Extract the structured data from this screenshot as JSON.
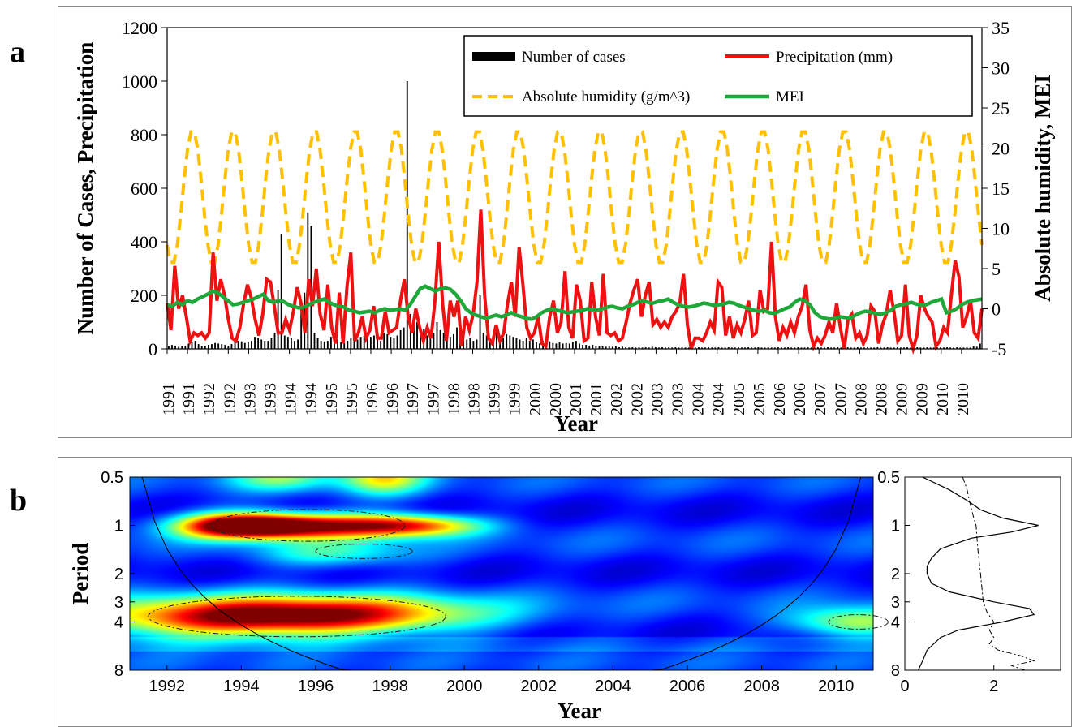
{
  "panel_a_letter": "a",
  "panel_b_letter": "b",
  "chart_data": [
    {
      "type": "line",
      "panel": "a",
      "xlabel": "Year",
      "ylabel": "Number of Cases, Precipitation",
      "y2label": "Absolute humidity, MEI",
      "ylim": [
        0,
        1200
      ],
      "y2lim": [
        -5,
        35
      ],
      "yticks": [
        "0",
        "200",
        "400",
        "600",
        "800",
        "1000",
        "1200"
      ],
      "y2ticks": [
        "-5",
        "0",
        "5",
        "10",
        "15",
        "20",
        "25",
        "30",
        "35"
      ],
      "xticks": [
        "1991",
        "1991",
        "1992",
        "1992",
        "1993",
        "1993",
        "1994",
        "1994",
        "1995",
        "1995",
        "1996",
        "1996",
        "1997",
        "1997",
        "1998",
        "1998",
        "1999",
        "1999",
        "2000",
        "2000",
        "2001",
        "2001",
        "2002",
        "2002",
        "2003",
        "2003",
        "2004",
        "2004",
        "2005",
        "2005",
        "2006",
        "2006",
        "2007",
        "2007",
        "2008",
        "2008",
        "2009",
        "2009",
        "2010",
        "2010"
      ],
      "legend": {
        "placement": "top-right",
        "entries": [
          "Number of cases",
          "Precipitation (mm)",
          "Absolute humidity (g/m^3)",
          "MEI"
        ]
      },
      "colors": {
        "cases": "#000000",
        "precip": "#ee1111",
        "humidity": "#ffc000",
        "mei": "#1fa83a"
      },
      "series": [
        {
          "name": "Number of cases",
          "axis": "left",
          "style": "bar",
          "values": [
            10,
            15,
            12,
            8,
            10,
            12,
            20,
            25,
            30,
            18,
            12,
            10,
            15,
            18,
            22,
            20,
            18,
            15,
            12,
            18,
            25,
            30,
            28,
            22,
            25,
            30,
            45,
            40,
            35,
            30,
            30,
            40,
            60,
            220,
            430,
            50,
            45,
            40,
            30,
            35,
            180,
            210,
            510,
            460,
            60,
            40,
            30,
            28,
            30,
            45,
            40,
            35,
            25,
            22,
            30,
            40,
            30,
            35,
            45,
            50,
            40,
            45,
            50,
            35,
            30,
            60,
            55,
            45,
            40,
            50,
            70,
            80,
            1000,
            130,
            120,
            100,
            80,
            75,
            50,
            40,
            60,
            100,
            70,
            60,
            50,
            45,
            55,
            80,
            60,
            45,
            35,
            40,
            30,
            35,
            200,
            60,
            50,
            40,
            50,
            60,
            45,
            40,
            55,
            50,
            45,
            40,
            35,
            30,
            40,
            30,
            35,
            25,
            20,
            30,
            25,
            28,
            22,
            20,
            25,
            20,
            22,
            20,
            25,
            30,
            20,
            15,
            15,
            12,
            15,
            10,
            12,
            10,
            8,
            10,
            8,
            10,
            6,
            8,
            6,
            5,
            6,
            5,
            6,
            5,
            6,
            5,
            8,
            6,
            5,
            6,
            5,
            6,
            5,
            6,
            5,
            6,
            5,
            5,
            6,
            5,
            6,
            5,
            5,
            6,
            5,
            5,
            6,
            5,
            5,
            6,
            5,
            5,
            6,
            5,
            5,
            6,
            5,
            5,
            6,
            5,
            5,
            6,
            5,
            5,
            6,
            5,
            5,
            6,
            5,
            5,
            6,
            5,
            5,
            6,
            5,
            5,
            6,
            5,
            5,
            6,
            5,
            5,
            6,
            5,
            5,
            6,
            5,
            5,
            6,
            5,
            5,
            6,
            5,
            5,
            6,
            5,
            5,
            6,
            5,
            5,
            6,
            5,
            5,
            6,
            5,
            5,
            6,
            5,
            5,
            6,
            5,
            5,
            6,
            5,
            5,
            6,
            5,
            5,
            6,
            5,
            5,
            6,
            5,
            10,
            8,
            20
          ]
        },
        {
          "name": "Precipitation (mm)",
          "axis": "left",
          "style": "solid",
          "values": [
            170,
            70,
            310,
            150,
            200,
            120,
            30,
            60,
            50,
            60,
            40,
            60,
            360,
            180,
            260,
            200,
            110,
            40,
            30,
            80,
            170,
            240,
            190,
            110,
            50,
            130,
            260,
            250,
            160,
            60,
            60,
            110,
            70,
            140,
            230,
            170,
            60,
            260,
            160,
            300,
            130,
            70,
            240,
            80,
            20,
            210,
            20,
            230,
            360,
            30,
            60,
            120,
            40,
            70,
            160,
            40,
            40,
            140,
            60,
            70,
            80,
            180,
            260,
            120,
            60,
            150,
            80,
            30,
            80,
            40,
            180,
            400,
            170,
            30,
            180,
            120,
            180,
            10,
            120,
            70,
            130,
            250,
            520,
            200,
            40,
            20,
            90,
            30,
            60,
            170,
            250,
            120,
            380,
            240,
            80,
            40,
            60,
            120,
            20,
            10,
            120,
            180,
            60,
            100,
            290,
            80,
            40,
            240,
            180,
            30,
            40,
            250,
            120,
            50,
            280,
            60,
            50,
            60,
            30,
            40,
            100,
            170,
            220,
            260,
            120,
            200,
            250,
            90,
            110,
            80,
            100,
            80,
            120,
            140,
            170,
            280,
            90,
            0,
            40,
            40,
            30,
            60,
            100,
            70,
            250,
            230,
            50,
            120,
            40,
            90,
            60,
            110,
            180,
            50,
            60,
            220,
            140,
            150,
            400,
            120,
            30,
            80,
            50,
            100,
            60,
            120,
            160,
            240,
            70,
            10,
            40,
            20,
            50,
            100,
            60,
            170,
            80,
            0,
            110,
            130,
            40,
            60,
            20,
            50,
            160,
            140,
            20,
            90,
            130,
            220,
            140,
            30,
            50,
            240,
            50,
            0,
            50,
            200,
            150,
            120,
            100,
            10,
            30,
            80,
            60,
            200,
            330,
            270,
            80,
            120,
            180,
            60,
            40,
            150
          ]
        },
        {
          "name": "Absolute humidity (g/m^3)",
          "axis": "right",
          "style": "dashed",
          "period_months": 12,
          "min": 5.5,
          "max": 22.3
        },
        {
          "name": "MEI",
          "axis": "right",
          "style": "solid",
          "values": [
            0.5,
            0.3,
            0.8,
            0.5,
            1,
            0.8,
            1.2,
            1.5,
            1.8,
            2.2,
            2.0,
            1.5,
            1.0,
            0.5,
            0.6,
            0.8,
            1.0,
            1.2,
            1.5,
            1.8,
            1.0,
            0.8,
            1.0,
            0.9,
            0.5,
            0.3,
            0.1,
            0.2,
            0.5,
            0.8,
            1.0,
            1.2,
            0.8,
            0.5,
            0.3,
            0.2,
            -0.2,
            -0.3,
            -0.5,
            -0.4,
            -0.3,
            -0.5,
            -0.2,
            0.0,
            -0.2,
            -0.1,
            0.0,
            -0.2,
            0.5,
            1.5,
            2.5,
            2.8,
            2.5,
            2.2,
            2.5,
            2.6,
            2.4,
            1.8,
            1.0,
            0.0,
            -0.5,
            -0.8,
            -1.0,
            -1.2,
            -1.0,
            -0.8,
            -1.0,
            -0.8,
            -0.5,
            -0.8,
            -1.0,
            -1.2,
            -1.3,
            -1.0,
            -0.5,
            -0.2,
            0.0,
            -0.2,
            -0.3,
            -0.5,
            -0.4,
            -0.3,
            -0.2,
            0.0,
            -0.1,
            -0.2,
            0.0,
            0.2,
            0.3,
            0.1,
            0.0,
            0.3,
            0.5,
            0.8,
            1.0,
            0.8,
            0.7,
            0.9,
            1.0,
            1.2,
            0.8,
            0.5,
            0.3,
            0.2,
            0.3,
            0.5,
            0.7,
            0.6,
            0.4,
            0.5,
            0.6,
            0.8,
            0.7,
            0.4,
            0.2,
            0.0,
            -0.2,
            -0.3,
            -0.2,
            -0.5,
            -0.6,
            -0.3,
            0.0,
            0.2,
            0.8,
            1.2,
            1.0,
            0.5,
            -0.5,
            -1.0,
            -1.2,
            -1.3,
            -1.2,
            -1.0,
            -1.1,
            -1.2,
            -0.8,
            -0.5,
            -0.3,
            -0.4,
            -0.6,
            -0.7,
            -0.5,
            -0.2,
            0.3,
            0.5,
            0.6,
            0.8,
            0.6,
            0.4,
            0.5,
            0.8,
            1.0,
            1.2,
            -0.5,
            -0.3,
            0.0,
            0.5,
            0.8,
            1.0,
            1.1,
            1.2
          ]
        }
      ]
    },
    {
      "type": "heatmap",
      "panel": "b",
      "xlabel": "Year",
      "ylabel": "Period",
      "xticks": [
        "1992",
        "1994",
        "1996",
        "1998",
        "2000",
        "2002",
        "2004",
        "2006",
        "2008",
        "2010"
      ],
      "xrange": [
        1991,
        2011
      ],
      "yticks": [
        "0.5",
        "1",
        "2",
        "3",
        "4",
        "8"
      ],
      "yrange_log2": [
        -1,
        3
      ],
      "colormap": "jet",
      "hotspots": [
        {
          "year": 1994.7,
          "period": 1,
          "power": 1.0,
          "year_spread": 1.4,
          "period_spread_log2": 0.18
        },
        {
          "year": 1997.6,
          "period": 1,
          "power": 0.55,
          "year_spread": 1.3,
          "period_spread_log2": 0.18
        },
        {
          "year": 1999.0,
          "period": 1,
          "power": 0.35,
          "year_spread": 1.2,
          "period_spread_log2": 0.15
        },
        {
          "year": 1993.5,
          "period": 1,
          "power": 0.35,
          "year_spread": 1.0,
          "period_spread_log2": 0.2
        },
        {
          "year": 1997.8,
          "period": 0.5,
          "power": 0.45,
          "year_spread": 0.8,
          "period_spread_log2": 0.25
        },
        {
          "year": 1995.0,
          "period": 0.5,
          "power": 0.3,
          "year_spread": 1.0,
          "period_spread_log2": 0.2
        },
        {
          "year": 1996.5,
          "period": 3.6,
          "power": 0.68,
          "year_spread": 2.8,
          "period_spread_log2": 0.28
        },
        {
          "year": 1993.0,
          "period": 3.8,
          "power": 0.5,
          "year_spread": 2.6,
          "period_spread_log2": 0.3
        },
        {
          "year": 2010.5,
          "period": 4,
          "power": 0.42,
          "year_spread": 1.2,
          "period_spread_log2": 0.22
        },
        {
          "year": 1996.5,
          "period": 1.5,
          "power": 0.25,
          "year_spread": 1.5,
          "period_spread_log2": 0.2
        }
      ],
      "side_panel": {
        "xticks": [
          "0",
          "2"
        ],
        "xlim": [
          0,
          3.5
        ],
        "global_power": {
          "periods": [
            0.5,
            0.6,
            0.7,
            0.8,
            0.9,
            1.0,
            1.1,
            1.2,
            1.4,
            1.6,
            1.8,
            2.0,
            2.3,
            2.6,
            3.0,
            3.3,
            3.6,
            4.0,
            4.5,
            5.0,
            6.0,
            7.0,
            8.0
          ],
          "values": [
            0.4,
            1.0,
            1.4,
            1.7,
            2.2,
            3.0,
            2.4,
            1.5,
            0.8,
            0.6,
            0.5,
            0.5,
            0.6,
            1.0,
            2.0,
            2.8,
            2.9,
            2.2,
            1.2,
            0.8,
            0.5,
            0.4,
            0.3
          ]
        },
        "significance": {
          "periods": [
            0.5,
            0.6,
            0.7,
            0.8,
            0.9,
            1.0,
            1.2,
            1.4,
            1.6,
            1.8,
            2.0,
            2.3,
            2.6,
            3.0,
            3.5,
            4.0,
            4.5,
            5.0,
            5.5,
            6.0,
            6.5,
            7.0,
            7.5,
            8.0
          ],
          "values": [
            1.3,
            1.4,
            1.45,
            1.5,
            1.55,
            1.6,
            1.62,
            1.64,
            1.66,
            1.68,
            1.7,
            1.72,
            1.74,
            1.76,
            1.85,
            2.0,
            1.9,
            2.0,
            1.9,
            2.1,
            2.6,
            2.9,
            2.4,
            2.7
          ]
        }
      }
    }
  ]
}
